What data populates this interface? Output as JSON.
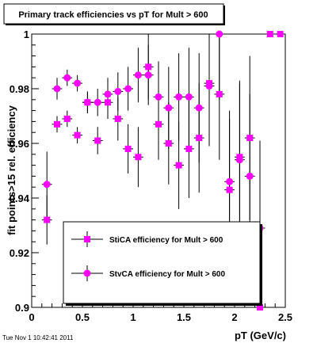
{
  "chart_data": {
    "type": "scatter",
    "title": "Primary track efficiencies vs pT for Mult > 600",
    "xlabel": "pT (GeV/c)",
    "ylabel": "fit points>15 rel. efficiency",
    "xlim": [
      0,
      2.5
    ],
    "ylim": [
      0.9,
      1.0
    ],
    "x_ticks": [
      "0",
      "0.5",
      "1",
      "1.5",
      "2",
      "2.5"
    ],
    "y_ticks": [
      "0.9",
      "0.92",
      "0.94",
      "0.96",
      "0.98",
      "1"
    ],
    "grid": false,
    "legend_position": "bottom-center",
    "timestamp": "Tue Nov  1 10:42:41 2011",
    "series": [
      {
        "name": "StiCA efficiency  for Mult > 600",
        "marker": "square",
        "color": "#ff00ff",
        "points": [
          {
            "x": 0.15,
            "y": 0.932,
            "err": 0.009
          },
          {
            "x": 0.25,
            "y": 0.967,
            "err": 0.003
          },
          {
            "x": 0.35,
            "y": 0.969,
            "err": 0.003
          },
          {
            "x": 0.45,
            "y": 0.963,
            "err": 0.003
          },
          {
            "x": 0.55,
            "y": 0.975,
            "err": 0.004
          },
          {
            "x": 0.65,
            "y": 0.961,
            "err": 0.005
          },
          {
            "x": 0.75,
            "y": 0.975,
            "err": 0.006
          },
          {
            "x": 0.85,
            "y": 0.969,
            "err": 0.008
          },
          {
            "x": 0.95,
            "y": 0.958,
            "err": 0.009
          },
          {
            "x": 1.05,
            "y": 0.955,
            "err": 0.011
          },
          {
            "x": 1.15,
            "y": 0.988,
            "err": 0.012
          },
          {
            "x": 1.25,
            "y": 0.967,
            "err": 0.013
          },
          {
            "x": 1.35,
            "y": 0.96,
            "err": 0.015
          },
          {
            "x": 1.45,
            "y": 0.952,
            "err": 0.016
          },
          {
            "x": 1.55,
            "y": 0.958,
            "err": 0.018
          },
          {
            "x": 1.65,
            "y": 0.962,
            "err": 0.02
          },
          {
            "x": 1.75,
            "y": 0.982,
            "err": 0.022
          },
          {
            "x": 1.85,
            "y": 0.978,
            "err": 0.024
          },
          {
            "x": 1.95,
            "y": 0.943,
            "err": 0.026
          },
          {
            "x": 2.05,
            "y": 0.955,
            "err": 0.028
          },
          {
            "x": 2.15,
            "y": 0.962,
            "err": 0.03
          },
          {
            "x": 2.25,
            "y": 0.9,
            "err": 0.032
          },
          {
            "x": 2.35,
            "y": 1.0,
            "err": 0.0
          },
          {
            "x": 2.45,
            "y": 1.0,
            "err": 0.0
          }
        ]
      },
      {
        "name": "StvCA efficiency  for Mult > 600",
        "marker": "circle",
        "color": "#ff00ff",
        "points": [
          {
            "x": 0.15,
            "y": 0.945,
            "err": 0.012
          },
          {
            "x": 0.25,
            "y": 0.98,
            "err": 0.004
          },
          {
            "x": 0.35,
            "y": 0.984,
            "err": 0.003
          },
          {
            "x": 0.45,
            "y": 0.982,
            "err": 0.003
          },
          {
            "x": 0.55,
            "y": 0.975,
            "err": 0.004
          },
          {
            "x": 0.65,
            "y": 0.975,
            "err": 0.005
          },
          {
            "x": 0.75,
            "y": 0.978,
            "err": 0.006
          },
          {
            "x": 0.85,
            "y": 0.979,
            "err": 0.007
          },
          {
            "x": 0.95,
            "y": 0.98,
            "err": 0.008
          },
          {
            "x": 1.05,
            "y": 0.985,
            "err": 0.01
          },
          {
            "x": 1.15,
            "y": 0.985,
            "err": 0.011
          },
          {
            "x": 1.25,
            "y": 0.977,
            "err": 0.013
          },
          {
            "x": 1.35,
            "y": 0.973,
            "err": 0.015
          },
          {
            "x": 1.45,
            "y": 0.977,
            "err": 0.016
          },
          {
            "x": 1.55,
            "y": 0.977,
            "err": 0.018
          },
          {
            "x": 1.65,
            "y": 0.973,
            "err": 0.02
          },
          {
            "x": 1.75,
            "y": 0.981,
            "err": 0.022
          },
          {
            "x": 1.85,
            "y": 1.0,
            "err": 0.024
          },
          {
            "x": 1.95,
            "y": 0.946,
            "err": 0.026
          },
          {
            "x": 2.05,
            "y": 0.954,
            "err": 0.028
          },
          {
            "x": 2.15,
            "y": 0.948,
            "err": 0.03
          },
          {
            "x": 2.25,
            "y": 0.929,
            "err": 0.032
          }
        ]
      }
    ]
  }
}
